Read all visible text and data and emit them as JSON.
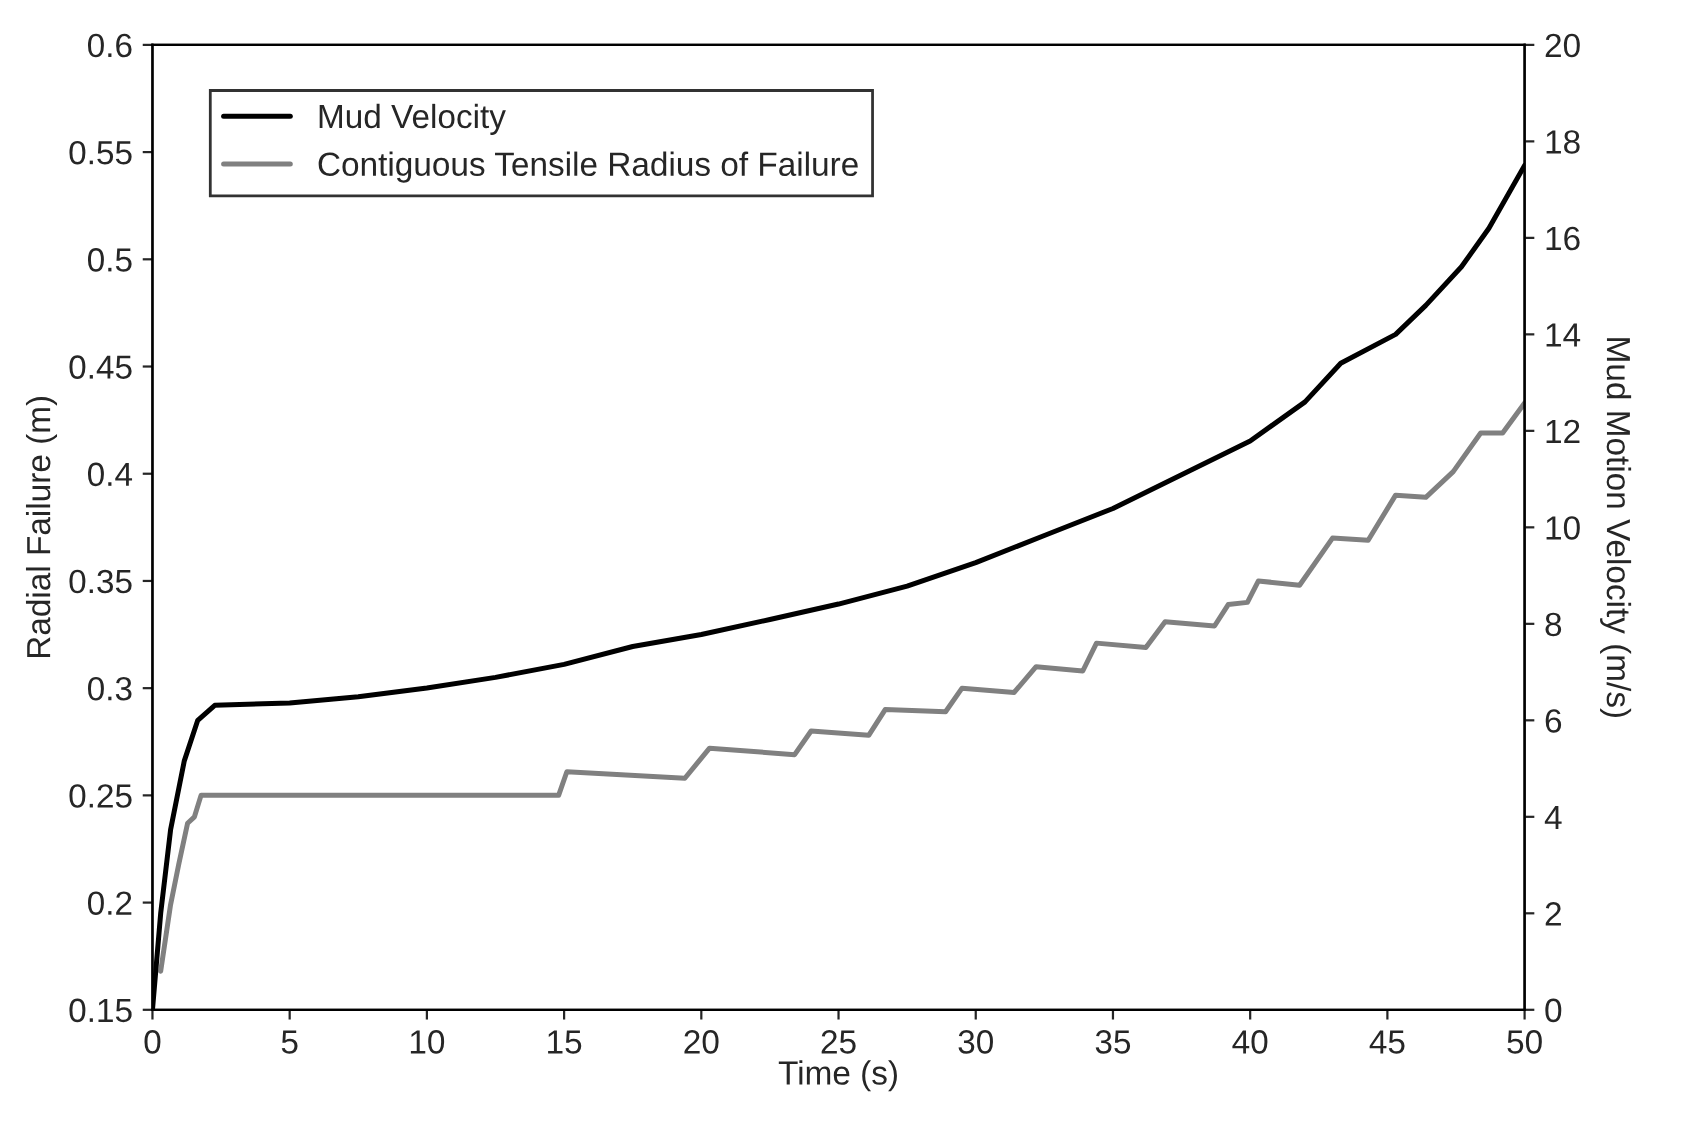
{
  "chart_data": {
    "type": "line",
    "xlabel": "Time (s)",
    "ylabel": "Radial Failure (m)",
    "y2label": "Mud Motion Velocity (m/s)",
    "xlim": [
      0,
      50
    ],
    "xticks": [
      0,
      5,
      10,
      15,
      20,
      25,
      30,
      35,
      40,
      45,
      50
    ],
    "ylim": [
      0.15,
      0.6
    ],
    "yticks": [
      0.15,
      0.2,
      0.25,
      0.3,
      0.35,
      0.4,
      0.45,
      0.5,
      0.55,
      0.6
    ],
    "y2lim": [
      0,
      20
    ],
    "y2ticks": [
      0,
      2,
      4,
      6,
      8,
      10,
      12,
      14,
      16,
      18,
      20
    ],
    "grid": false,
    "legend": "top left",
    "marker": "none",
    "line_style": "solid",
    "series": [
      {
        "name": "Mud Velocity",
        "color": "#000000",
        "axis": "y2",
        "x": [
          0,
          0.3,
          0.66,
          1.16,
          1.65,
          2.27,
          5,
          7.5,
          10,
          12.5,
          15,
          17.5,
          20,
          22.5,
          25,
          27.5,
          30,
          32.5,
          35,
          37.5,
          40,
          42,
          43.3,
          45.3,
          46.4,
          47.7,
          48.7,
          50
        ],
        "values": [
          0,
          2.0,
          3.73,
          5.16,
          6.0,
          6.31,
          6.36,
          6.49,
          6.67,
          6.89,
          7.16,
          7.53,
          7.78,
          8.09,
          8.41,
          8.78,
          9.27,
          9.83,
          10.39,
          11.09,
          11.79,
          12.6,
          13.4,
          14.0,
          14.6,
          15.4,
          16.2,
          17.5
        ]
      },
      {
        "name": "Contiguous Tensile Radius of Failure",
        "color": "#808080",
        "axis": "y",
        "x": [
          0.3,
          0.66,
          0.96,
          1.28,
          1.53,
          1.77,
          14.8,
          15.1,
          19.4,
          20.3,
          23.4,
          24,
          26.1,
          26.7,
          28.9,
          29.5,
          31.4,
          32.2,
          33.9,
          34.4,
          36.2,
          36.9,
          38.7,
          39.2,
          39.9,
          40.3,
          41.8,
          43,
          44.3,
          45.3,
          46.4,
          47.4,
          48.4,
          49.2,
          50
        ],
        "values": [
          0.168,
          0.199,
          0.218,
          0.237,
          0.24,
          0.25,
          0.25,
          0.261,
          0.258,
          0.272,
          0.269,
          0.28,
          0.278,
          0.29,
          0.289,
          0.3,
          0.298,
          0.31,
          0.308,
          0.321,
          0.319,
          0.331,
          0.329,
          0.339,
          0.34,
          0.35,
          0.348,
          0.37,
          0.369,
          0.39,
          0.389,
          0.401,
          0.419,
          0.419,
          0.433
        ]
      }
    ]
  }
}
